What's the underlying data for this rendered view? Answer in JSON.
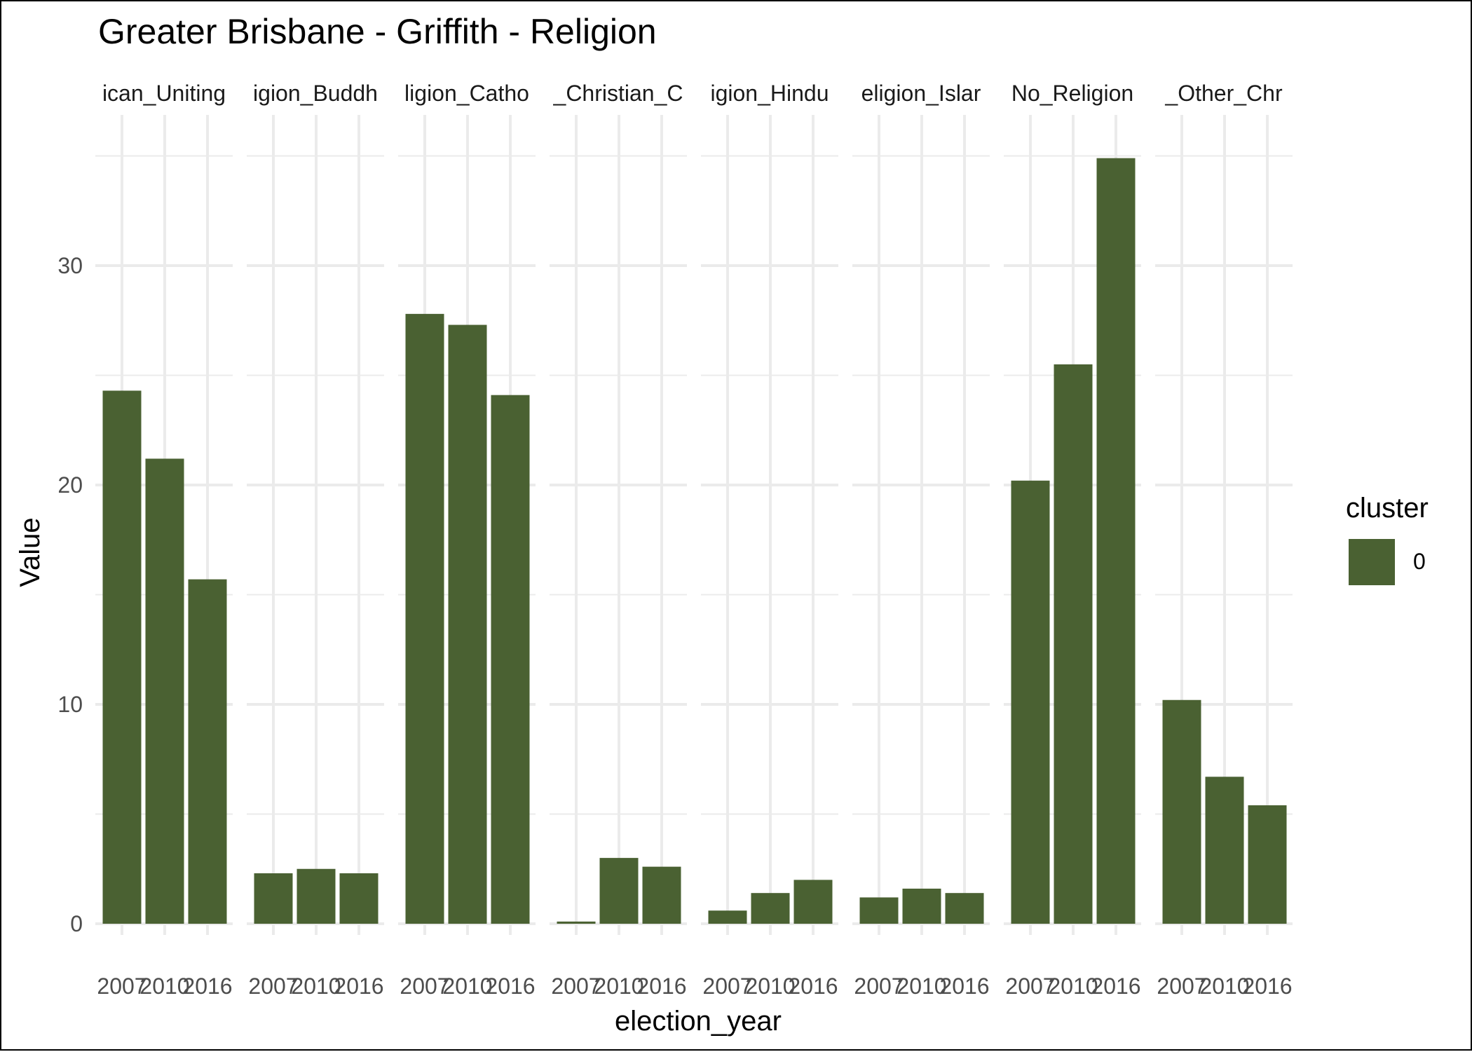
{
  "chart_data": {
    "type": "bar",
    "title": "Greater Brisbane - Griffith - Religion",
    "xlabel": "election_year",
    "ylabel": "Value",
    "ylim": [
      0,
      35
    ],
    "y_ticks": [
      0,
      10,
      20,
      30
    ],
    "grid": true,
    "categories": [
      "2007",
      "2010",
      "2016"
    ],
    "panels": [
      {
        "label": "ican_Uniting",
        "values": [
          24.3,
          21.2,
          15.7
        ]
      },
      {
        "label": "igion_Buddh",
        "values": [
          2.3,
          2.5,
          2.3
        ]
      },
      {
        "label": "ligion_Catho",
        "values": [
          27.8,
          27.3,
          24.1
        ]
      },
      {
        "label": "_Christian_C",
        "values": [
          0.1,
          3.0,
          2.6
        ]
      },
      {
        "label": "igion_Hindu",
        "values": [
          0.6,
          1.4,
          2.0
        ]
      },
      {
        "label": "eligion_Islar",
        "values": [
          1.2,
          1.6,
          1.4
        ]
      },
      {
        "label": "No_Religion",
        "values": [
          20.2,
          25.5,
          34.9
        ]
      },
      {
        "label": "_Other_Chr",
        "values": [
          10.2,
          6.7,
          5.4
        ]
      }
    ],
    "legend": {
      "title": "cluster",
      "placement": "right",
      "entries": [
        {
          "label": "0",
          "color": "#4a6132"
        }
      ]
    },
    "colors": {
      "bar": "#4a6132",
      "grid": "#ebebeb",
      "text": "#4d4d4d",
      "title": "#000000"
    }
  }
}
